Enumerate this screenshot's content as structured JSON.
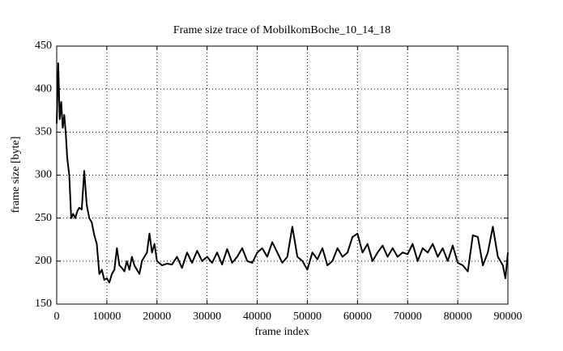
{
  "chart_data": {
    "type": "line",
    "title": "Frame size trace of MobilkomBoche_10_14_18",
    "x_label": "frame index",
    "y_label": "frame size [byte]",
    "x": [
      0,
      300,
      600,
      900,
      1200,
      1500,
      1800,
      2100,
      2500,
      2900,
      3300,
      3700,
      4100,
      4500,
      5000,
      5500,
      6000,
      6500,
      7000,
      7500,
      8000,
      8500,
      9000,
      9500,
      10000,
      10500,
      11000,
      11500,
      12000,
      12500,
      13000,
      13500,
      14000,
      14500,
      15000,
      15500,
      16000,
      16500,
      17000,
      17500,
      18000,
      18500,
      19000,
      19500,
      20000,
      21000,
      22000,
      23000,
      24000,
      25000,
      26000,
      27000,
      28000,
      29000,
      30000,
      31000,
      32000,
      33000,
      34000,
      35000,
      36000,
      37000,
      38000,
      39000,
      40000,
      41000,
      42000,
      43000,
      44000,
      45000,
      46000,
      47000,
      48000,
      49000,
      50000,
      51000,
      52000,
      53000,
      54000,
      55000,
      56000,
      57000,
      58000,
      59000,
      60000,
      61000,
      62000,
      63000,
      64000,
      65000,
      66000,
      67000,
      68000,
      69000,
      70000,
      71000,
      72000,
      73000,
      74000,
      75000,
      76000,
      77000,
      78000,
      79000,
      80000,
      81000,
      82000,
      83000,
      84000,
      85000,
      86000,
      87000,
      88000,
      89000,
      89500,
      90000
    ],
    "series": [
      {
        "name": "frame size",
        "color": "#000000",
        "values": [
          360,
          430,
          365,
          385,
          355,
          370,
          350,
          320,
          300,
          250,
          255,
          250,
          258,
          262,
          260,
          305,
          265,
          250,
          245,
          230,
          220,
          185,
          190,
          178,
          180,
          175,
          185,
          190,
          215,
          195,
          192,
          188,
          200,
          190,
          205,
          195,
          190,
          185,
          200,
          205,
          210,
          232,
          210,
          220,
          200,
          195,
          197,
          196,
          205,
          192,
          210,
          198,
          212,
          200,
          205,
          198,
          210,
          196,
          214,
          198,
          205,
          215,
          200,
          198,
          210,
          215,
          205,
          222,
          210,
          198,
          205,
          240,
          205,
          200,
          190,
          210,
          202,
          215,
          195,
          200,
          215,
          205,
          210,
          228,
          232,
          210,
          220,
          200,
          210,
          218,
          205,
          215,
          205,
          210,
          208,
          220,
          200,
          215,
          210,
          220,
          205,
          215,
          200,
          218,
          198,
          195,
          188,
          230,
          228,
          195,
          210,
          240,
          205,
          195,
          180,
          210
        ]
      }
    ],
    "xlim": [
      0,
      90000
    ],
    "ylim": [
      150,
      450
    ],
    "xticks": [
      0,
      10000,
      20000,
      30000,
      40000,
      50000,
      60000,
      70000,
      80000,
      90000
    ],
    "yticks": [
      150,
      200,
      250,
      300,
      350,
      400,
      450
    ],
    "grid": true
  }
}
